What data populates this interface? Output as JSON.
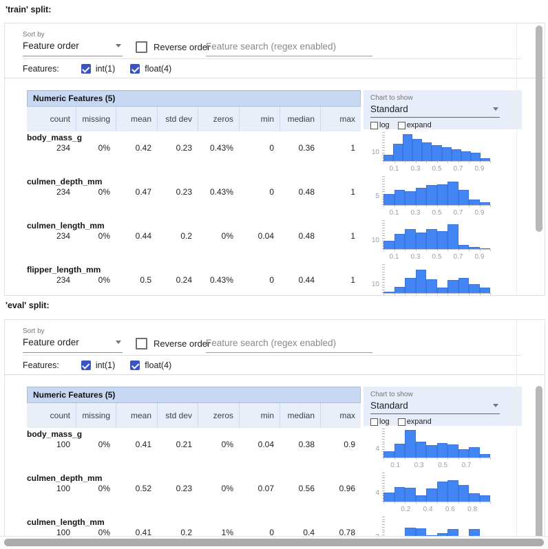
{
  "page": {
    "train_title": "'train' split:",
    "eval_title": "'eval' split:"
  },
  "columns": [
    "count",
    "missing",
    "mean",
    "std dev",
    "zeros",
    "min",
    "median",
    "max"
  ],
  "splits": [
    {
      "title": "'train' split:",
      "toolbar": {
        "sort_by_label": "Sort by",
        "sort_value": "Feature order",
        "reverse_label": "Reverse order",
        "search_placeholder": "Feature search (regex enabled)"
      },
      "features_bar": {
        "label": "Features:",
        "types": [
          "int(1)",
          "float(4)"
        ]
      },
      "chart_controls": {
        "label": "Chart to show",
        "value": "Standard",
        "log_label": "log",
        "expand_label": "expand"
      },
      "table": {
        "header": "Numeric Features (5)",
        "rows": [
          {
            "name": "body_mass_g",
            "values": [
              "234",
              "0%",
              "0.42",
              "0.23",
              "0.43%",
              "0",
              "0.36",
              "1"
            ],
            "hist": {
              "ylabel": "10",
              "bins": [
                0.22,
                0.6,
                0.92,
                0.76,
                0.64,
                0.55,
                0.47,
                0.4,
                0.34,
                0.28,
                0.1
              ],
              "xticks": [
                {
                  "t": "0.1",
                  "f": 0.1
                },
                {
                  "t": "0.3",
                  "f": 0.3
                },
                {
                  "t": "0.5",
                  "f": 0.5
                },
                {
                  "t": "0.7",
                  "f": 0.7
                },
                {
                  "t": "0.9",
                  "f": 0.9
                }
              ]
            }
          },
          {
            "name": "culmen_depth_mm",
            "values": [
              "234",
              "0%",
              "0.47",
              "0.23",
              "0.43%",
              "0",
              "0.48",
              "1"
            ],
            "hist": {
              "ylabel": "5",
              "bins": [
                0.38,
                0.52,
                0.47,
                0.6,
                0.68,
                0.72,
                0.8,
                0.52,
                0.2,
                0.1
              ],
              "xticks": [
                {
                  "t": "0.1",
                  "f": 0.1
                },
                {
                  "t": "0.3",
                  "f": 0.3
                },
                {
                  "t": "0.5",
                  "f": 0.5
                },
                {
                  "t": "0.7",
                  "f": 0.7
                },
                {
                  "t": "0.9",
                  "f": 0.9
                }
              ]
            }
          },
          {
            "name": "culmen_length_mm",
            "values": [
              "234",
              "0%",
              "0.44",
              "0.2",
              "0%",
              "0.04",
              "0.48",
              "1"
            ],
            "hist": {
              "ylabel": "10",
              "bins": [
                0.28,
                0.52,
                0.68,
                0.58,
                0.7,
                0.62,
                0.86,
                0.14,
                0.08,
                0.03
              ],
              "xticks": [
                {
                  "t": "0.1",
                  "f": 0.1
                },
                {
                  "t": "0.3",
                  "f": 0.3
                },
                {
                  "t": "0.5",
                  "f": 0.5
                },
                {
                  "t": "0.7",
                  "f": 0.7
                },
                {
                  "t": "0.9",
                  "f": 0.9
                }
              ]
            }
          },
          {
            "name": "flipper_length_mm",
            "values": [
              "234",
              "0%",
              "0.5",
              "0.24",
              "0.43%",
              "0",
              "0.44",
              "1"
            ],
            "hist": {
              "ylabel": "10",
              "bins": [
                0.05,
                0.22,
                0.52,
                0.82,
                0.48,
                0.18,
                0.45,
                0.52,
                0.3,
                0.18
              ],
              "xticks": [
                {
                  "t": "0.1",
                  "f": 0.1
                },
                {
                  "t": "0.3",
                  "f": 0.3
                },
                {
                  "t": "0.5",
                  "f": 0.5
                },
                {
                  "t": "0.7",
                  "f": 0.7
                },
                {
                  "t": "0.9",
                  "f": 0.9
                }
              ]
            }
          }
        ]
      }
    },
    {
      "title": "'eval' split:",
      "toolbar": {
        "sort_by_label": "Sort by",
        "sort_value": "Feature order",
        "reverse_label": "Reverse order",
        "search_placeholder": "Feature search (regex enabled)"
      },
      "features_bar": {
        "label": "Features:",
        "types": [
          "int(1)",
          "float(4)"
        ]
      },
      "chart_controls": {
        "label": "Chart to show",
        "value": "Standard",
        "log_label": "log",
        "expand_label": "expand"
      },
      "table": {
        "header": "Numeric Features (5)",
        "rows": [
          {
            "name": "body_mass_g",
            "values": [
              "100",
              "0%",
              "0.41",
              "0.21",
              "0%",
              "0.04",
              "0.38",
              "0.9"
            ],
            "hist": {
              "ylabel": "4",
              "bins": [
                0.22,
                0.48,
                0.95,
                0.55,
                0.42,
                0.5,
                0.45,
                0.28,
                0.35,
                0.12
              ],
              "xticks": [
                {
                  "t": "0.1",
                  "f": 0.111
                },
                {
                  "t": "0.3",
                  "f": 0.333
                },
                {
                  "t": "0.5",
                  "f": 0.556
                },
                {
                  "t": "0.7",
                  "f": 0.778
                }
              ]
            }
          },
          {
            "name": "culmen_depth_mm",
            "values": [
              "100",
              "0%",
              "0.52",
              "0.23",
              "0%",
              "0.07",
              "0.56",
              "0.96"
            ],
            "hist": {
              "ylabel": "4",
              "bins": [
                0.32,
                0.5,
                0.48,
                0.22,
                0.45,
                0.68,
                0.75,
                0.58,
                0.28,
                0.22
              ],
              "xticks": [
                {
                  "t": "0.2",
                  "f": 0.208
                },
                {
                  "t": "0.4",
                  "f": 0.417
                },
                {
                  "t": "0.6",
                  "f": 0.625
                },
                {
                  "t": "0.8",
                  "f": 0.833
                }
              ]
            }
          },
          {
            "name": "culmen_length_mm",
            "values": [
              "100",
              "0%",
              "0.41",
              "0.2",
              "1%",
              "0",
              "0.4",
              "0.78"
            ],
            "hist": {
              "ylabel": "2",
              "bins": [
                0.06,
                0.28,
                0.62,
                0.6,
                0.35,
                0.42,
                0.58,
                0.32,
                0.58,
                0.28
              ],
              "xticks": []
            }
          }
        ]
      }
    }
  ],
  "colors": {
    "histogram_bar": "#4285f4",
    "table_header_bg": "#c7d8f3",
    "table_subheader_bg": "#e9eff9",
    "checkbox_checked": "#3a53c5"
  }
}
